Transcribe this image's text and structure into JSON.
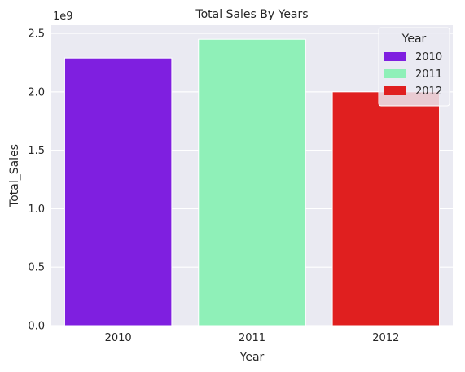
{
  "chart_data": {
    "type": "bar",
    "title": "Total Sales By Years",
    "xlabel": "Year",
    "ylabel": "Total_Sales",
    "y_offset_label": "1e9",
    "categories": [
      "2010",
      "2011",
      "2012"
    ],
    "values": [
      2.29,
      2.45,
      2.0
    ],
    "y_scale": 1000000000,
    "ylim": [
      0,
      2.57
    ],
    "yticks": [
      "0.0",
      "0.5",
      "1.0",
      "1.5",
      "2.0",
      "2.5"
    ],
    "ytick_values": [
      0,
      0.5,
      1.0,
      1.5,
      2.0,
      2.5
    ],
    "colors": [
      "#7f1fe0",
      "#8ff0b8",
      "#e01f1f"
    ],
    "grid": true,
    "legend": {
      "title": "Year",
      "placement": "top-right",
      "entries": [
        "2010",
        "2011",
        "2012"
      ]
    },
    "background": "#eaeaf2"
  }
}
